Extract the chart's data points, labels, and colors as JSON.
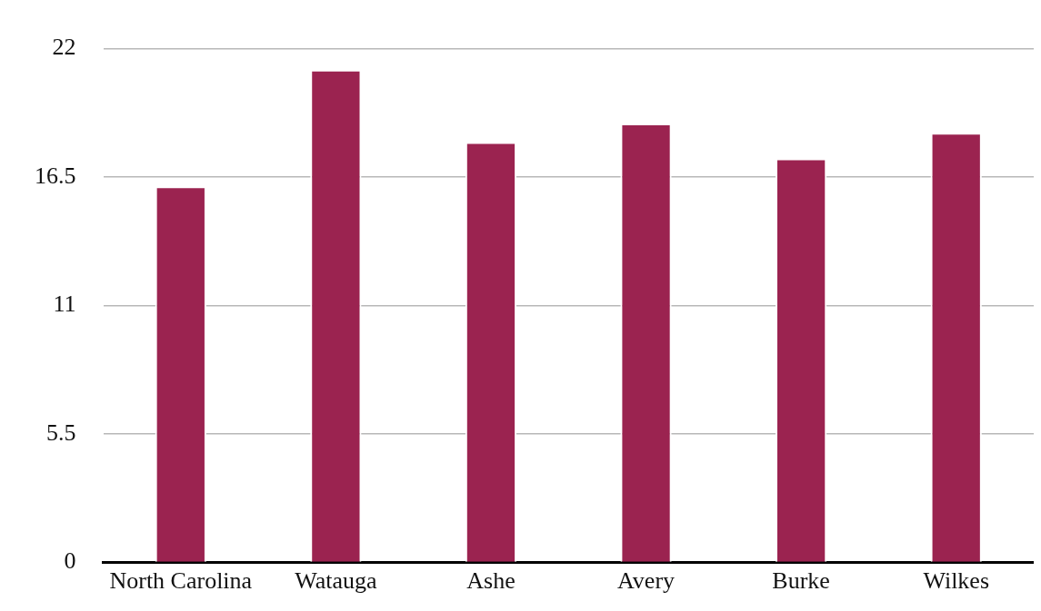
{
  "chart_data": {
    "type": "bar",
    "categories": [
      "North Carolina",
      "Watauga",
      "Ashe",
      "Avery",
      "Burke",
      "Wilkes"
    ],
    "values": [
      16.1,
      21.1,
      18.0,
      18.8,
      17.3,
      18.4
    ],
    "color": "#9b2350",
    "ylim": [
      0,
      22
    ],
    "yticks": [
      0,
      5.5,
      11,
      16.5,
      22
    ],
    "grid": "y",
    "legend": false
  }
}
